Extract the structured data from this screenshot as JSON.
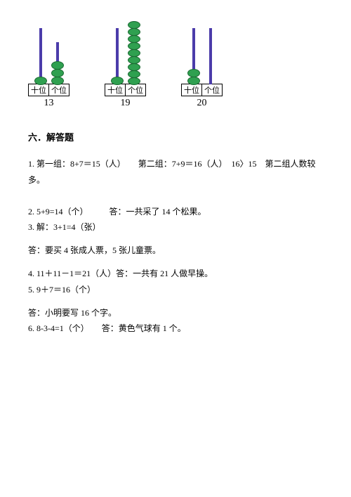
{
  "abacuses": [
    {
      "tens_beads": 1,
      "ones_beads": 3,
      "tens_label": "十位",
      "ones_label": "个位",
      "number": "13",
      "rod_height_tens": 80,
      "rod_height_ones": 60
    },
    {
      "tens_beads": 1,
      "ones_beads": 9,
      "tens_label": "十位",
      "ones_label": "个位",
      "number": "19",
      "rod_height_tens": 80,
      "rod_height_ones": 90
    },
    {
      "tens_beads": 2,
      "ones_beads": 0,
      "tens_label": "十位",
      "ones_label": "个位",
      "number": "20",
      "rod_height_tens": 80,
      "rod_height_ones": 80
    }
  ],
  "section_title": "六．解答题",
  "lines": {
    "l1": "1. 第一组：8+7＝15（人）　　第二组：7+9＝16（人）　16〉15　第二组人数较多。",
    "l2": "2. 5+9=14（个）　　　答：一共采了 14 个松果。",
    "l3": "3. 解：3+1=4（张）",
    "l4": "答：要买 4 张成人票，5 张儿童票。",
    "l5": "4. 11＋11－1＝21（人）答：一共有 21 人做早操。",
    "l6": "5. 9＋7＝16（个）",
    "l7": "答：小明要写 16 个字。",
    "l8": "6. 8-3-4=1（个）　　答：黄色气球有 1 个。"
  },
  "colors": {
    "rod": "#4b3caa",
    "bead_fill": "#2fa050",
    "bead_border": "#1d6b34",
    "text": "#000000",
    "bg": "#ffffff"
  }
}
